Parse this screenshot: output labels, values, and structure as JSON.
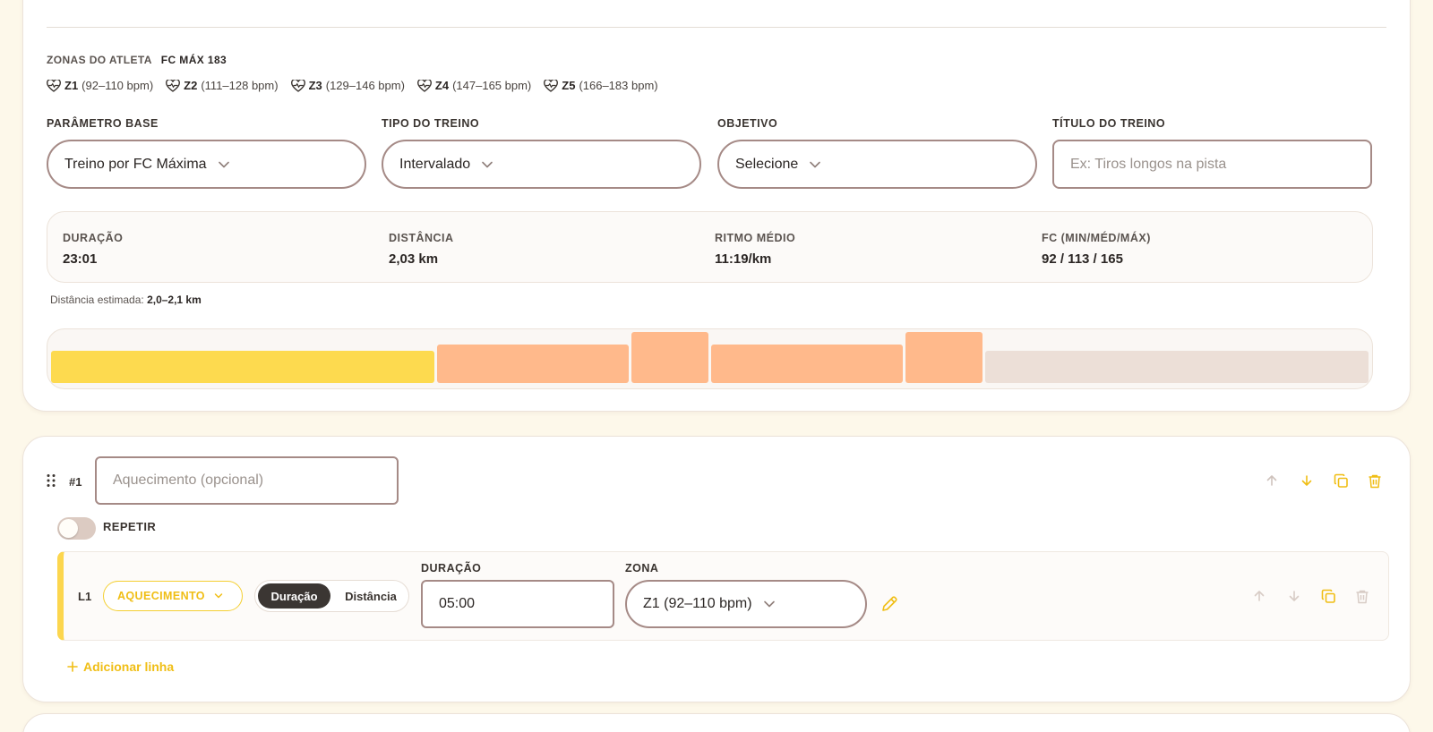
{
  "athlete_zones": {
    "label": "ZONAS DO ATLETA",
    "fc_max": "FC MÁX 183",
    "zones": [
      {
        "code": "Z1",
        "range": "(92–110 bpm)"
      },
      {
        "code": "Z2",
        "range": "(111–128 bpm)"
      },
      {
        "code": "Z3",
        "range": "(129–146 bpm)"
      },
      {
        "code": "Z4",
        "range": "(147–165 bpm)"
      },
      {
        "code": "Z5",
        "range": "(166–183 bpm)"
      }
    ]
  },
  "form": {
    "base_param": {
      "label": "PARÂMETRO BASE",
      "value": "Treino por FC Máxima"
    },
    "workout_type": {
      "label": "TIPO DO TREINO",
      "value": "Intervalado"
    },
    "objective": {
      "label": "OBJETIVO",
      "value": "Selecione"
    },
    "workout_title": {
      "label": "TÍTULO DO TREINO",
      "placeholder": "Ex: Tiros longos na pista"
    }
  },
  "summary": {
    "duration": {
      "label": "DURAÇÃO",
      "value": "23:01"
    },
    "distance": {
      "label": "DISTÂNCIA",
      "value": "2,03 km"
    },
    "pace": {
      "label": "RITMO MÉDIO",
      "value": "11:19/km"
    },
    "hr": {
      "label": "FC (MIN/MÉD/MÁX)",
      "value": "92 / 113 / 165"
    }
  },
  "estimate": {
    "label": "Distância estimada:",
    "value": "2,0–2,1 km"
  },
  "timeline": {
    "segments": [
      {
        "zone": "Z1",
        "weight": 5.0,
        "level": 1,
        "color": "#fdda4f"
      },
      {
        "zone": "Z2",
        "weight": 2.5,
        "level": 2,
        "color": "#ffb98b"
      },
      {
        "zone": "Z4",
        "weight": 1.0,
        "level": 4,
        "color": "#ffb98b"
      },
      {
        "zone": "Z2",
        "weight": 2.5,
        "level": 2,
        "color": "#ffb98b"
      },
      {
        "zone": "Z4",
        "weight": 1.0,
        "level": 4,
        "color": "#ffb98b"
      },
      {
        "zone": "Z1",
        "weight": 5.0,
        "level": 1,
        "color": "#ecdfd7"
      }
    ]
  },
  "block": {
    "number": "#1",
    "title_placeholder": "Aquecimento (opcional)",
    "repeat_label": "REPETIR",
    "repeat_on": false,
    "lines": [
      {
        "id": "L1",
        "type": "AQUECIMENTO",
        "mode_options": [
          "Duração",
          "Distância"
        ],
        "mode_selected": "Duração",
        "duration_label": "DURAÇÃO",
        "duration_value": "05:00",
        "zone_label": "ZONA",
        "zone_value": "Z1 (92–110 bpm)"
      }
    ],
    "add_line_label": "Adicionar linha"
  },
  "colors": {
    "accent": "#f0be15",
    "border": "#a58a86",
    "dark": "#3b3633"
  }
}
